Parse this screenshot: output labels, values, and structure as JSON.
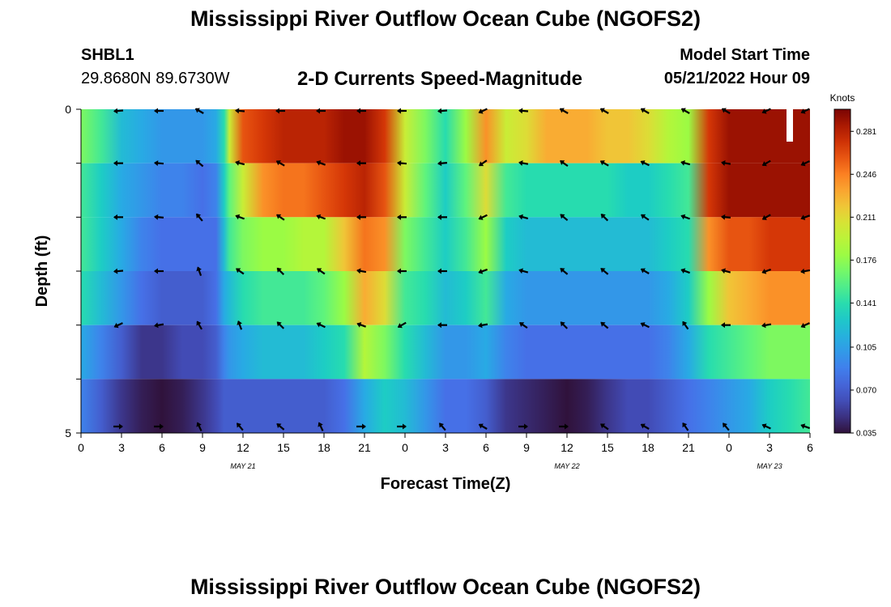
{
  "header": {
    "title": "Mississippi River Outflow Ocean Cube (NGOFS2)",
    "station_id": "SHBL1",
    "station_coords": "29.8680N  89.6730W",
    "subtitle": "2-D Currents Speed-Magnitude",
    "model_start_label": "Model Start Time",
    "model_start_value": "05/21/2022 Hour 09",
    "bottom_title": "Mississippi River Outflow Ocean Cube (NGOFS2)"
  },
  "chart_data": {
    "type": "heatmap",
    "title": "2-D Currents Speed-Magnitude",
    "xlabel": "Forecast Time(Z)",
    "ylabel": "Depth (ft)",
    "x_tick_labels": [
      "0",
      "3",
      "6",
      "9",
      "12",
      "15",
      "18",
      "21",
      "0",
      "3",
      "6",
      "9",
      "12",
      "15",
      "18",
      "21",
      "0",
      "3",
      "6"
    ],
    "x_hours": [
      0,
      3,
      6,
      9,
      12,
      15,
      18,
      21,
      24,
      27,
      30,
      33,
      36,
      39,
      42,
      45,
      48,
      51,
      54
    ],
    "xlim_hours": [
      0,
      54
    ],
    "date_labels": [
      {
        "label": "MAY 21",
        "hour": 12
      },
      {
        "label": "MAY 22",
        "hour": 36
      },
      {
        "label": "MAY 23",
        "hour": 51
      }
    ],
    "y_tick_labels": [
      "0",
      "5"
    ],
    "ylim": [
      0,
      5
    ],
    "layer_depths": [
      0,
      1,
      2,
      3,
      4,
      5
    ],
    "colorbar": {
      "title": "Knots",
      "tick_labels": [
        "0.281",
        "0.246",
        "0.211",
        "0.176",
        "0.141",
        "0.105",
        "0.070",
        "0.035"
      ],
      "range": [
        0.035,
        0.299
      ]
    },
    "speed_hours": [
      0,
      1.5,
      3,
      4.5,
      6,
      7.5,
      9,
      10,
      10.6,
      11,
      12,
      13.5,
      15,
      16.5,
      18,
      19.5,
      21,
      22.5,
      24,
      25.5,
      27,
      28.5,
      30,
      31.5,
      33,
      34.5,
      36,
      37.5,
      39,
      40.5,
      42,
      43.5,
      45,
      46.5,
      48,
      49.5,
      51,
      52.5,
      54
    ],
    "speed_by_layer": [
      [
        0.17,
        0.15,
        0.12,
        0.11,
        0.1,
        0.1,
        0.1,
        0.11,
        0.14,
        0.2,
        0.26,
        0.27,
        0.28,
        0.28,
        0.28,
        0.29,
        0.29,
        0.27,
        0.2,
        0.17,
        0.14,
        0.18,
        0.24,
        0.2,
        0.21,
        0.23,
        0.23,
        0.23,
        0.22,
        0.22,
        0.21,
        0.19,
        0.18,
        0.27,
        0.29,
        0.29,
        0.29,
        0.29,
        0.29
      ],
      [
        0.15,
        0.13,
        0.11,
        0.1,
        0.09,
        0.09,
        0.08,
        0.09,
        0.13,
        0.16,
        0.2,
        0.24,
        0.25,
        0.25,
        0.26,
        0.27,
        0.28,
        0.26,
        0.2,
        0.16,
        0.13,
        0.16,
        0.21,
        0.15,
        0.14,
        0.14,
        0.14,
        0.14,
        0.14,
        0.13,
        0.13,
        0.14,
        0.15,
        0.27,
        0.29,
        0.29,
        0.29,
        0.29,
        0.29
      ],
      [
        0.15,
        0.13,
        0.11,
        0.09,
        0.08,
        0.08,
        0.08,
        0.08,
        0.12,
        0.15,
        0.17,
        0.18,
        0.18,
        0.19,
        0.19,
        0.22,
        0.25,
        0.24,
        0.17,
        0.15,
        0.13,
        0.15,
        0.18,
        0.13,
        0.12,
        0.12,
        0.12,
        0.12,
        0.12,
        0.12,
        0.12,
        0.13,
        0.14,
        0.24,
        0.26,
        0.26,
        0.27,
        0.27,
        0.27
      ],
      [
        0.14,
        0.12,
        0.1,
        0.08,
        0.07,
        0.07,
        0.07,
        0.08,
        0.11,
        0.12,
        0.14,
        0.15,
        0.15,
        0.15,
        0.16,
        0.18,
        0.23,
        0.21,
        0.15,
        0.14,
        0.12,
        0.13,
        0.15,
        0.11,
        0.1,
        0.1,
        0.1,
        0.1,
        0.1,
        0.1,
        0.1,
        0.11,
        0.13,
        0.18,
        0.22,
        0.23,
        0.24,
        0.24,
        0.24
      ],
      [
        0.11,
        0.09,
        0.07,
        0.05,
        0.05,
        0.06,
        0.06,
        0.07,
        0.09,
        0.1,
        0.11,
        0.12,
        0.12,
        0.12,
        0.13,
        0.14,
        0.19,
        0.17,
        0.14,
        0.12,
        0.1,
        0.1,
        0.11,
        0.09,
        0.08,
        0.08,
        0.08,
        0.08,
        0.08,
        0.08,
        0.08,
        0.09,
        0.11,
        0.14,
        0.15,
        0.16,
        0.17,
        0.17,
        0.17
      ],
      [
        0.09,
        0.07,
        0.05,
        0.04,
        0.035,
        0.04,
        0.05,
        0.06,
        0.07,
        0.07,
        0.07,
        0.07,
        0.07,
        0.07,
        0.07,
        0.08,
        0.11,
        0.13,
        0.12,
        0.1,
        0.08,
        0.08,
        0.07,
        0.05,
        0.045,
        0.04,
        0.035,
        0.04,
        0.05,
        0.06,
        0.06,
        0.07,
        0.08,
        0.09,
        0.1,
        0.11,
        0.13,
        0.14,
        0.15
      ]
    ],
    "vector_hours": [
      3,
      6,
      9,
      12,
      15,
      18,
      21,
      24,
      27,
      30,
      33,
      36,
      39,
      42,
      45,
      48,
      51,
      54
    ],
    "vector_directions_deg": [
      [
        185,
        180,
        150,
        175,
        180,
        180,
        180,
        180,
        185,
        205,
        175,
        150,
        150,
        150,
        150,
        150,
        205,
        205
      ],
      [
        180,
        175,
        140,
        165,
        150,
        160,
        180,
        175,
        185,
        215,
        170,
        145,
        150,
        155,
        165,
        170,
        210,
        205
      ],
      [
        180,
        175,
        130,
        160,
        145,
        160,
        180,
        180,
        180,
        205,
        165,
        140,
        135,
        145,
        160,
        175,
        210,
        200
      ],
      [
        185,
        180,
        110,
        145,
        135,
        145,
        170,
        180,
        180,
        200,
        165,
        140,
        140,
        150,
        160,
        165,
        200,
        190
      ],
      [
        205,
        190,
        120,
        110,
        135,
        155,
        160,
        210,
        180,
        190,
        145,
        135,
        140,
        155,
        125,
        180,
        190,
        205
      ],
      [
        0,
        0,
        115,
        130,
        140,
        115,
        0,
        0,
        130,
        150,
        0,
        0,
        145,
        150,
        125,
        130,
        155,
        160
      ]
    ],
    "legend": "colorbar right"
  }
}
